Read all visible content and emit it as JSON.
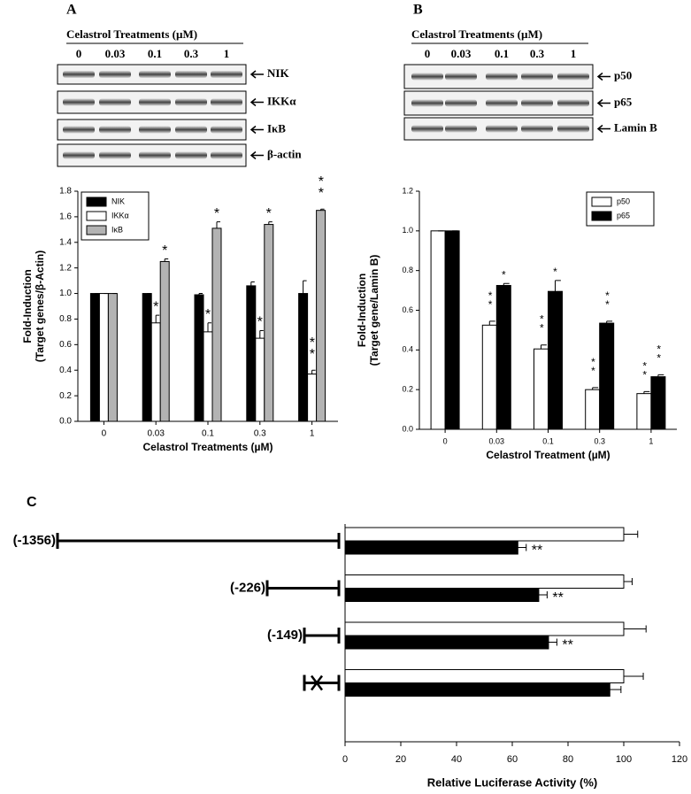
{
  "panel_labels": [
    "A",
    "B",
    "C"
  ],
  "blots": [
    {
      "header": "Celastrol Treatments (µM)",
      "lanes": [
        "0",
        "0.03",
        "0.1",
        "0.3",
        "1"
      ],
      "bands": [
        "NIK",
        "IKKα",
        "IκB",
        "β-actin"
      ]
    },
    {
      "header": "Celastrol Treatments (µM)",
      "lanes": [
        "0",
        "0.03",
        "0.1",
        "0.3",
        "1"
      ],
      "bands": [
        "p50",
        "p65",
        "Lamin B"
      ]
    }
  ],
  "chart_data": [
    {
      "type": "bar",
      "xlabel": "Celastrol Treatments (µM)",
      "ylabel": [
        "Fold-Induction",
        "(Target genes/β-Actin)"
      ],
      "categories": [
        "0",
        "0.03",
        "0.1",
        "0.3",
        "1"
      ],
      "series": [
        {
          "name": "NIK",
          "color": "#000000",
          "values": [
            1.0,
            1.0,
            0.99,
            1.06,
            1.0
          ],
          "errors": [
            0,
            0,
            0.01,
            0.03,
            0.1
          ]
        },
        {
          "name": "IKKα",
          "color": "#ffffff",
          "values": [
            1.0,
            0.77,
            0.7,
            0.65,
            0.37
          ],
          "errors": [
            0,
            0.06,
            0.07,
            0.06,
            0.03
          ],
          "significance": [
            null,
            "*",
            "*",
            "*",
            "**"
          ]
        },
        {
          "name": "IκB",
          "color": "#b3b3b3",
          "values": [
            1.0,
            1.25,
            1.51,
            1.54,
            1.65
          ],
          "errors": [
            0,
            0.02,
            0.05,
            0.02,
            0.01
          ],
          "significance": [
            null,
            "*",
            "*",
            "*",
            "**"
          ]
        }
      ],
      "ylim": [
        0,
        1.8
      ],
      "yticks": [
        {
          "value": 0,
          "label": "0.0"
        },
        0.2,
        0.4,
        0.6,
        0.8,
        {
          "value": 1,
          "label": "1.0"
        },
        1.2,
        1.4,
        1.6,
        1.8
      ],
      "legend": "upper-left"
    },
    {
      "type": "bar",
      "xlabel": "Celastrol Treatment (µM)",
      "ylabel": [
        "Fold-Induction",
        "(Target gene/Lamin B)"
      ],
      "categories": [
        "0",
        "0.03",
        "0.1",
        "0.3",
        "1"
      ],
      "series": [
        {
          "name": "p50",
          "color": "#ffffff",
          "values": [
            1.0,
            0.525,
            0.405,
            0.2,
            0.18
          ],
          "errors": [
            0,
            0.02,
            0.02,
            0.01,
            0.01
          ],
          "significance": [
            null,
            "**",
            "**",
            "**",
            "**"
          ]
        },
        {
          "name": "p65",
          "color": "#000000",
          "values": [
            1.0,
            0.725,
            0.695,
            0.535,
            0.265
          ],
          "errors": [
            0,
            0.01,
            0.055,
            0.01,
            0.01
          ],
          "significance": [
            null,
            "*",
            "*",
            "**",
            "**"
          ]
        }
      ],
      "ylim": [
        0,
        1.2
      ],
      "yticks": [
        {
          "value": 0,
          "label": "0.0"
        },
        0.2,
        0.4,
        0.6,
        0.8,
        {
          "value": 1,
          "label": "1.0"
        },
        1.2
      ],
      "legend": "upper-right"
    },
    {
      "type": "barh",
      "xlabel": "Relative Luciferase Activity (%)",
      "categories": [
        "(-1356)",
        "(-226)",
        "(-149)",
        null
      ],
      "series": [
        {
          "color": "#ffffff",
          "values": [
            100,
            100,
            100,
            100
          ],
          "errors": [
            5,
            3,
            8,
            7
          ]
        },
        {
          "color": "#000000",
          "values": [
            62,
            69.5,
            73,
            95
          ],
          "errors": [
            3,
            3,
            3,
            4
          ],
          "significance": [
            "**",
            "**",
            "**",
            null
          ]
        }
      ],
      "xlim": [
        0,
        120
      ],
      "xticks": [
        0,
        20,
        40,
        60,
        80,
        100,
        120
      ]
    }
  ]
}
